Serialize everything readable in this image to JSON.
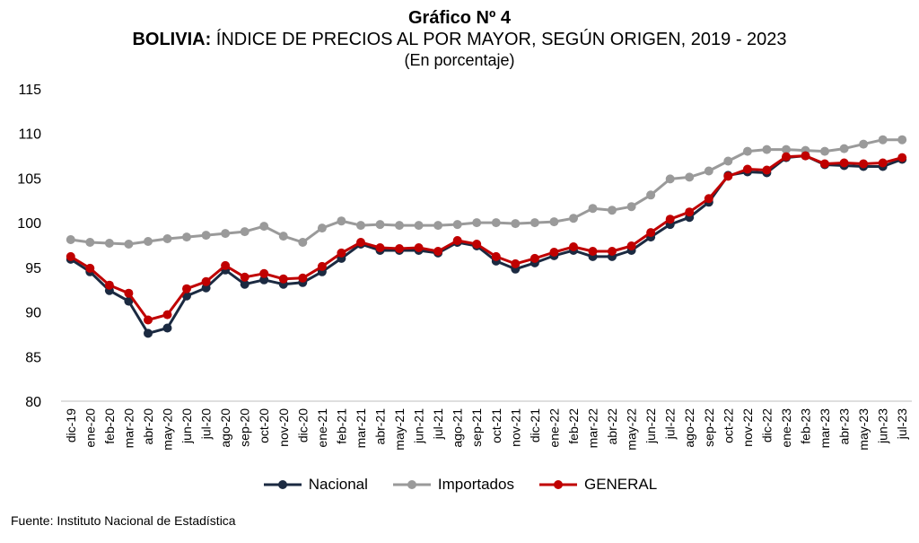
{
  "title": {
    "line1": "Gráfico Nº 4",
    "line2_bold": "BOLIVIA:",
    "line2_rest": " ÍNDICE DE PRECIOS AL POR MAYOR, SEGÚN ORIGEN, 2019 - 2023",
    "line3": "(En porcentaje)"
  },
  "source": "Fuente: Instituto Nacional de Estadística",
  "colors": {
    "Nacional": "#1b2a41",
    "Importados": "#9a9a9a",
    "GENERAL": "#c00000",
    "axis": "#bfbfbf"
  },
  "chart_data": {
    "type": "line",
    "title": "BOLIVIA: ÍNDICE DE PRECIOS AL POR MAYOR, SEGÚN ORIGEN, 2019 - 2023",
    "subtitle": "(En porcentaje)",
    "ylim": [
      80,
      115
    ],
    "yticks": [
      80,
      85,
      90,
      95,
      100,
      105,
      110,
      115
    ],
    "grid": false,
    "legend_position": "bottom",
    "categories": [
      "dic-19",
      "ene-20",
      "feb-20",
      "mar-20",
      "abr-20",
      "may-20",
      "jun-20",
      "jul-20",
      "ago-20",
      "sep-20",
      "oct-20",
      "nov-20",
      "dic-20",
      "ene-21",
      "feb-21",
      "mar-21",
      "abr-21",
      "may-21",
      "jun-21",
      "jul-21",
      "ago-21",
      "sep-21",
      "oct-21",
      "nov-21",
      "dic-21",
      "ene-22",
      "feb-22",
      "mar-22",
      "abr-22",
      "may-22",
      "jun-22",
      "jul-22",
      "ago-22",
      "sep-22",
      "oct-22",
      "nov-22",
      "dic-22",
      "ene-23",
      "feb-23",
      "mar-23",
      "abr-23",
      "may-23",
      "jun-23",
      "jul-23"
    ],
    "series": [
      {
        "name": "Nacional",
        "values": [
          95.9,
          94.5,
          92.4,
          91.2,
          87.6,
          88.2,
          91.8,
          92.7,
          94.7,
          93.1,
          93.6,
          93.1,
          93.3,
          94.5,
          96.0,
          97.6,
          96.9,
          96.9,
          96.9,
          96.6,
          97.8,
          97.4,
          95.7,
          94.8,
          95.5,
          96.3,
          96.9,
          96.2,
          96.2,
          96.9,
          98.4,
          99.8,
          100.6,
          102.3,
          105.3,
          105.7,
          105.6,
          107.3,
          107.5,
          106.5,
          106.4,
          106.3,
          106.3,
          107.1
        ]
      },
      {
        "name": "Importados",
        "values": [
          98.1,
          97.8,
          97.7,
          97.6,
          97.9,
          98.2,
          98.4,
          98.6,
          98.8,
          99.0,
          99.6,
          98.5,
          97.8,
          99.4,
          100.2,
          99.7,
          99.8,
          99.7,
          99.7,
          99.7,
          99.8,
          100.0,
          100.0,
          99.9,
          100.0,
          100.1,
          100.5,
          101.6,
          101.4,
          101.8,
          103.1,
          104.9,
          105.1,
          105.8,
          106.9,
          108.0,
          108.2,
          108.2,
          108.1,
          108.0,
          108.3,
          108.8,
          109.3,
          109.3
        ]
      },
      {
        "name": "GENERAL",
        "values": [
          96.2,
          94.9,
          93.0,
          92.1,
          89.1,
          89.7,
          92.6,
          93.4,
          95.2,
          93.9,
          94.3,
          93.7,
          93.8,
          95.1,
          96.6,
          97.8,
          97.2,
          97.1,
          97.2,
          96.8,
          98.0,
          97.6,
          96.2,
          95.4,
          96.0,
          96.7,
          97.3,
          96.8,
          96.8,
          97.4,
          98.9,
          100.4,
          101.2,
          102.7,
          105.2,
          106.0,
          105.9,
          107.4,
          107.5,
          106.6,
          106.7,
          106.6,
          106.7,
          107.3
        ]
      }
    ]
  }
}
